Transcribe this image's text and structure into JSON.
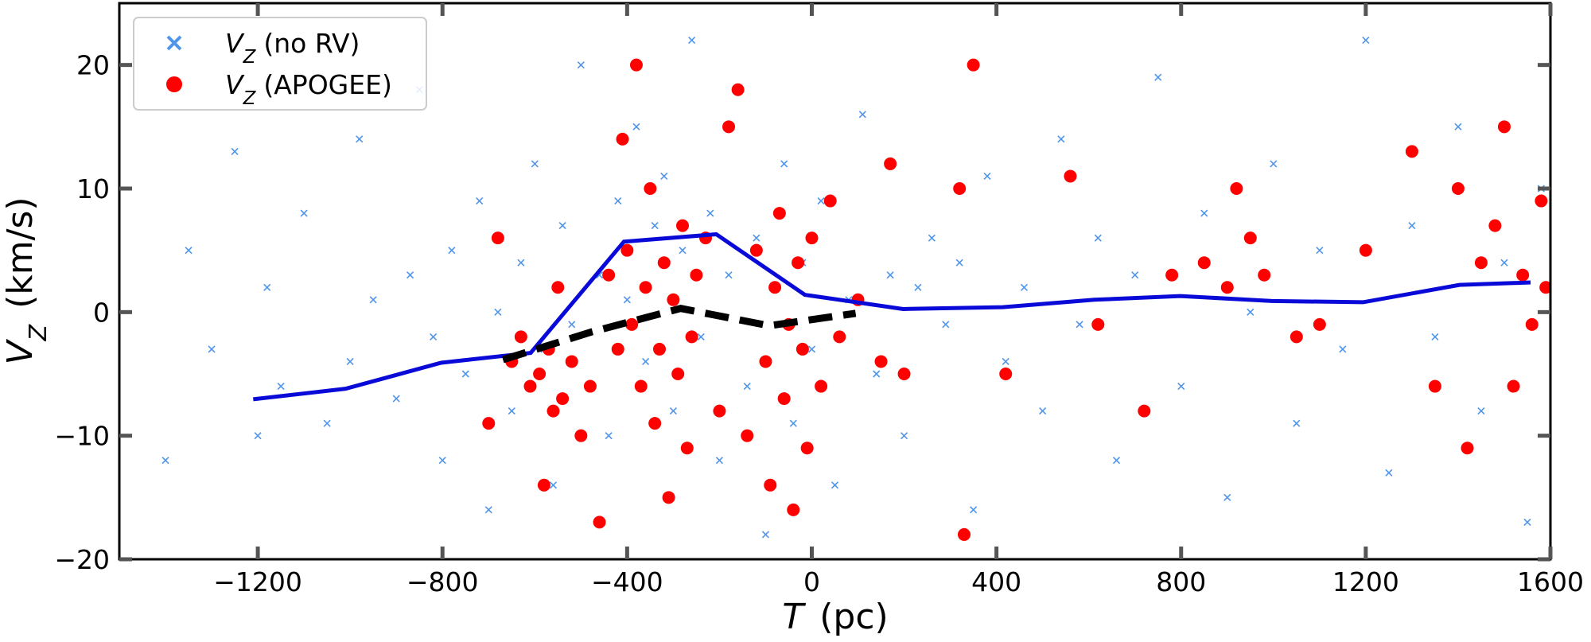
{
  "chart_data": {
    "type": "scatter",
    "xlabel": {
      "symbol": "T",
      "unit": "(pc)"
    },
    "ylabel": {
      "symbol": "V",
      "subscript": "Z",
      "unit": "(km/s)"
    },
    "xlim": [
      -1500,
      1600
    ],
    "ylim": [
      -20,
      25
    ],
    "xticks": [
      {
        "value": -1200,
        "label": "−1200"
      },
      {
        "value": -800,
        "label": "−800"
      },
      {
        "value": -400,
        "label": "−400"
      },
      0,
      400,
      800,
      1200,
      1600
    ],
    "yticks": [
      {
        "value": -20,
        "label": "−20"
      },
      {
        "value": -10,
        "label": "−10"
      },
      0,
      10,
      20
    ],
    "legend": "upper left",
    "series": [
      {
        "type": "scatter",
        "marker": "x",
        "symbol": "V",
        "subscript": "Z",
        "name": "(no RV)",
        "color": "#4f95ea",
        "x": [
          -1400,
          -1350,
          -1300,
          -1250,
          -1200,
          -1180,
          -1150,
          -1100,
          -1050,
          -1000,
          -980,
          -950,
          -900,
          -870,
          -850,
          -820,
          -800,
          -780,
          -750,
          -720,
          -700,
          -680,
          -650,
          -630,
          -600,
          -580,
          -560,
          -540,
          -520,
          -500,
          -480,
          -460,
          -440,
          -420,
          -400,
          -380,
          -360,
          -340,
          -320,
          -300,
          -280,
          -260,
          -240,
          -220,
          -200,
          -180,
          -160,
          -140,
          -120,
          -100,
          -80,
          -60,
          -40,
          -20,
          0,
          20,
          50,
          80,
          110,
          140,
          170,
          200,
          230,
          260,
          290,
          320,
          350,
          380,
          420,
          460,
          500,
          540,
          580,
          620,
          660,
          700,
          750,
          800,
          850,
          900,
          950,
          1000,
          1050,
          1100,
          1150,
          1200,
          1250,
          1300,
          1350,
          1400,
          1450,
          1500,
          1550,
          1580
        ],
        "values": [
          -12,
          5,
          -3,
          13,
          -10,
          2,
          -6,
          8,
          -9,
          -4,
          14,
          1,
          -7,
          3,
          18,
          -2,
          -12,
          5,
          -5,
          9,
          -16,
          0,
          -8,
          4,
          12,
          -3,
          -14,
          7,
          -1,
          20,
          -6,
          3,
          -10,
          9,
          1,
          15,
          -4,
          7,
          11,
          -8,
          5,
          22,
          -2,
          8,
          -12,
          3,
          18,
          -6,
          6,
          -18,
          2,
          12,
          -9,
          4,
          -3,
          9,
          -14,
          1,
          16,
          -5,
          3,
          -10,
          2,
          6,
          -1,
          4,
          -16,
          11,
          -4,
          2,
          -8,
          14,
          -1,
          6,
          -12,
          3,
          19,
          -6,
          8,
          -15,
          0,
          12,
          -9,
          5,
          -3,
          22,
          -13,
          7,
          -2,
          15,
          -8,
          4,
          -17,
          10
        ]
      },
      {
        "type": "scatter",
        "marker": "o",
        "symbol": "V",
        "subscript": "Z",
        "name": "(APOGEE)",
        "color": "#ff0000",
        "x": [
          -700,
          -680,
          -650,
          -630,
          -610,
          -590,
          -580,
          -570,
          -560,
          -550,
          -540,
          -520,
          -500,
          -480,
          -460,
          -440,
          -420,
          -410,
          -400,
          -390,
          -380,
          -370,
          -360,
          -350,
          -340,
          -330,
          -320,
          -310,
          -300,
          -290,
          -280,
          -270,
          -260,
          -250,
          -230,
          -200,
          -180,
          -160,
          -140,
          -120,
          -100,
          -90,
          -80,
          -70,
          -60,
          -50,
          -40,
          -30,
          -20,
          -10,
          0,
          20,
          40,
          60,
          100,
          150,
          170,
          200,
          320,
          350,
          330,
          420,
          560,
          620,
          720,
          780,
          850,
          900,
          920,
          950,
          980,
          1050,
          1100,
          1200,
          1300,
          1350,
          1400,
          1420,
          1450,
          1480,
          1500,
          1520,
          1540,
          1560,
          1580,
          1590
        ],
        "values": [
          -9,
          6,
          -4,
          -2,
          -6,
          -5,
          -14,
          -3,
          -8,
          2,
          -7,
          -4,
          -10,
          -6,
          -17,
          3,
          -3,
          14,
          5,
          -1,
          20,
          -6,
          2,
          10,
          -9,
          -3,
          4,
          -15,
          1,
          -5,
          7,
          -11,
          -2,
          3,
          6,
          -8,
          15,
          18,
          -10,
          5,
          -4,
          -14,
          2,
          8,
          -7,
          -1,
          -16,
          4,
          -3,
          -11,
          6,
          -6,
          9,
          -2,
          1,
          -4,
          12,
          -5,
          10,
          20,
          -18,
          -5,
          11,
          -1,
          -8,
          3,
          4,
          2,
          10,
          6,
          3,
          -2,
          -1,
          5,
          13,
          -6,
          10,
          -11,
          4,
          7,
          15,
          -6,
          3,
          -1,
          9,
          2
        ]
      },
      {
        "type": "line",
        "color": "#0a0ad8",
        "x": [
          -1210,
          -1010,
          -803,
          -609,
          -407,
          -207,
          -15,
          198,
          414,
          612,
          798,
          997,
          1194,
          1403,
          1557
        ],
        "values": [
          -7.05,
          -6.2,
          -4.1,
          -3.3,
          5.7,
          6.3,
          1.4,
          0.25,
          0.4,
          1.0,
          1.3,
          0.9,
          0.8,
          2.2,
          2.4
        ]
      },
      {
        "type": "line",
        "dash": true,
        "color": "#000000",
        "x": [
          -669,
          -477,
          -284,
          -92,
          95
        ],
        "values": [
          -3.85,
          -1.6,
          0.3,
          -1.1,
          -0.1
        ]
      }
    ]
  }
}
